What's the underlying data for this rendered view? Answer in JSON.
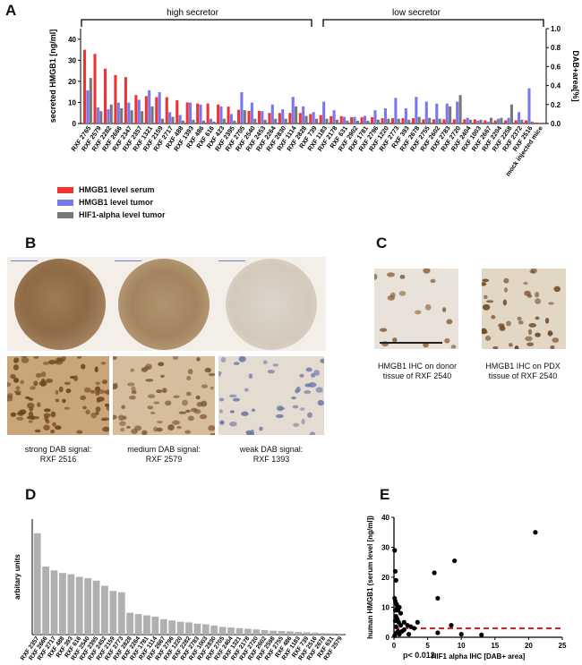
{
  "panels": {
    "A": "A",
    "B": "B",
    "C": "C",
    "D": "D",
    "E": "E"
  },
  "colors": {
    "serum": "#ee3333",
    "tumor": "#7777ee",
    "hif": "#777777",
    "bar_d": "#b0b0b0",
    "dash": "#e02020"
  },
  "panel_a": {
    "group_high": "high secretor",
    "group_low": "low secretor",
    "legend": [
      {
        "label": "HMGB1 level serum",
        "color": "#ee3333"
      },
      {
        "label": "HMGB1 level tumor",
        "color": "#7777ee"
      },
      {
        "label": "HIF1-alpha level tumor",
        "color": "#777777"
      }
    ]
  },
  "panel_b": {
    "captions": [
      "strong DAB signal:\nRXF 2516",
      "medium DAB signal:\nRXF 2579",
      "weak DAB signal:\nRXF 1393"
    ]
  },
  "panel_c": {
    "captions": [
      "HMGB1 IHC on donor\ntissue of RXF 2540",
      "HMGB1 IHC on PDX\ntissue of RXF 2540"
    ]
  },
  "panel_e": {
    "pvalue": "p< 0.012"
  },
  "chart_data": [
    {
      "type": "bar",
      "title": "",
      "ylabel": "secreted HMGB1 [ng/ml]",
      "y2label": "DAB+area[%]",
      "ylim": [
        0,
        45
      ],
      "y2lim": [
        0,
        1.0
      ],
      "yticks": [
        0,
        10,
        20,
        30,
        40
      ],
      "y2ticks": [
        "0.0",
        "0.2",
        "0.4",
        "0.6",
        "0.8",
        "1.0"
      ],
      "categories": [
        "RXF 2765",
        "RXF 2579",
        "RXF 2282",
        "RXF 2666",
        "RXF 2347",
        "RXF 2357",
        "RXF 1321",
        "RXF 2159",
        "RXF 2717",
        "RXF 488",
        "RXF 1393",
        "RXF 486",
        "RXF 616",
        "RXF 423",
        "RXF 2395",
        "RXF 2705",
        "RXF 2540",
        "RXF 2453",
        "RXF 2264",
        "RXF 2830",
        "RXF 1114",
        "RXF 2828",
        "RXF 739",
        "RXF 1183",
        "RXF 2178",
        "RXF 631",
        "RXF 2902",
        "RXF 1781",
        "RXF 2796",
        "RXF 1220",
        "RXF 2773",
        "RXF 393",
        "RXF 2678",
        "RXF 2755",
        "RXF 2602",
        "RXF 2783",
        "RXF 2720",
        "RXF 2404",
        "RXF 1003",
        "RXF 2667",
        "RXF 2204",
        "RXF 2258",
        "RXF 2372",
        "RXF 2516",
        "mock injected mice"
      ],
      "series": [
        {
          "name": "HMGB1 level serum",
          "values": [
            35,
            33,
            26,
            23,
            22,
            13.5,
            13,
            12.5,
            12.5,
            11,
            10,
            9.5,
            9.5,
            9,
            8,
            6.5,
            6,
            6,
            5,
            5,
            5,
            5,
            4.5,
            4,
            3.5,
            3.5,
            3,
            3,
            3,
            2.5,
            2.5,
            2.5,
            2.5,
            2,
            2,
            2,
            2,
            2,
            2,
            1.5,
            1.5,
            1.5,
            1.5,
            1.5,
            0.5
          ]
        },
        {
          "name": "HMGB1 level tumor",
          "values": [
            0.35,
            0.17,
            0.15,
            0.22,
            0.22,
            0.25,
            0.35,
            0.33,
            0.12,
            0.09,
            0.22,
            0.2,
            0.05,
            0.18,
            0.1,
            0.33,
            0.22,
            0.13,
            0.2,
            0.15,
            0.28,
            0.18,
            0.12,
            0.23,
            0.14,
            0.07,
            0.07,
            0.08,
            0.14,
            0.16,
            0.27,
            0.16,
            0.28,
            0.23,
            0.21,
            0.21,
            0.23,
            0.06,
            0.03,
            0.02,
            0.05,
            0.06,
            0.12,
            0.37,
            0
          ]
        },
        {
          "name": "HIF1-alpha level tumor",
          "values": [
            0.48,
            0.13,
            0.2,
            0.16,
            0.14,
            0.13,
            0.18,
            0.05,
            0.07,
            0.03,
            0.04,
            0.03,
            0.02,
            0.05,
            0.03,
            0.14,
            0.05,
            0.04,
            0.05,
            0.05,
            0.18,
            0.08,
            0.05,
            0.05,
            0.04,
            0.03,
            0.03,
            0.03,
            0.04,
            0.05,
            0.05,
            0.04,
            0.07,
            0.06,
            0.05,
            0.18,
            0.3,
            0.04,
            0.04,
            0.06,
            0.06,
            0.2,
            0.04,
            0.02,
            0
          ]
        }
      ]
    },
    {
      "type": "bar",
      "ylabel": "arbitary units",
      "ylim": [
        0,
        900
      ],
      "categories": [
        "RXF 2357",
        "RXF 2666",
        "RXF 2717",
        "RXF 488",
        "RXF 393",
        "RXF 616",
        "RXF 2540",
        "RXF 2395",
        "RXF 2452",
        "RXF 2159",
        "RXF 2773",
        "RXF 2828",
        "RXF 2264",
        "RXF 1781",
        "RXF 1114",
        "RXF 2667",
        "RXF 2796",
        "RXF 1220",
        "RXF 2282",
        "RXF 2783",
        "RXF 1003",
        "RXF 2830",
        "RXF 2705",
        "RXF 2404",
        "RXF 1321",
        "RXF 2178",
        "RXF 2720",
        "RXF 2602",
        "RXF 2598",
        "RXF 2755",
        "RXF 486",
        "RXF 1183",
        "RXF 739",
        "RXF 2516",
        "RXF 2678",
        "RXF 631",
        "RXF 2579"
      ],
      "values": [
        790,
        530,
        500,
        480,
        470,
        450,
        440,
        420,
        380,
        340,
        330,
        170,
        160,
        150,
        140,
        120,
        110,
        100,
        95,
        85,
        80,
        70,
        60,
        55,
        50,
        45,
        40,
        35,
        30,
        28,
        25,
        20,
        18,
        15,
        12,
        10,
        8
      ]
    },
    {
      "type": "scatter",
      "xlabel": "HIF1 alpha IHC [DAB+ area]",
      "ylabel": "human HMGB1 (serum level [ng/ml])",
      "xlim": [
        0,
        25
      ],
      "ylim": [
        0,
        40
      ],
      "xticks": [
        0,
        5,
        10,
        15,
        20,
        25
      ],
      "yticks": [
        0,
        10,
        20,
        30,
        40
      ],
      "threshold": 3,
      "points": [
        [
          0.1,
          29
        ],
        [
          0.2,
          22
        ],
        [
          0.3,
          19
        ],
        [
          0.1,
          13
        ],
        [
          0.2,
          12
        ],
        [
          0.4,
          11
        ],
        [
          0.5,
          10
        ],
        [
          0.8,
          10
        ],
        [
          0.2,
          9
        ],
        [
          0.6,
          9
        ],
        [
          1.0,
          8
        ],
        [
          0.3,
          7
        ],
        [
          0.5,
          6
        ],
        [
          0.2,
          5.5
        ],
        [
          0.7,
          5
        ],
        [
          1.5,
          5
        ],
        [
          1.0,
          4
        ],
        [
          0.3,
          3.5
        ],
        [
          2.0,
          4
        ],
        [
          2.5,
          3.5
        ],
        [
          3.0,
          3
        ],
        [
          1.5,
          2.5
        ],
        [
          0.6,
          2
        ],
        [
          1.2,
          2
        ],
        [
          0.4,
          1.5
        ],
        [
          2.2,
          1
        ],
        [
          0.8,
          1
        ],
        [
          0.1,
          0.5
        ],
        [
          3.5,
          5
        ],
        [
          6,
          21.5
        ],
        [
          6.5,
          13
        ],
        [
          9,
          25.5
        ],
        [
          8.5,
          4
        ],
        [
          10,
          1
        ],
        [
          13,
          0.8
        ],
        [
          21,
          35
        ],
        [
          6.5,
          1.5
        ]
      ]
    }
  ]
}
